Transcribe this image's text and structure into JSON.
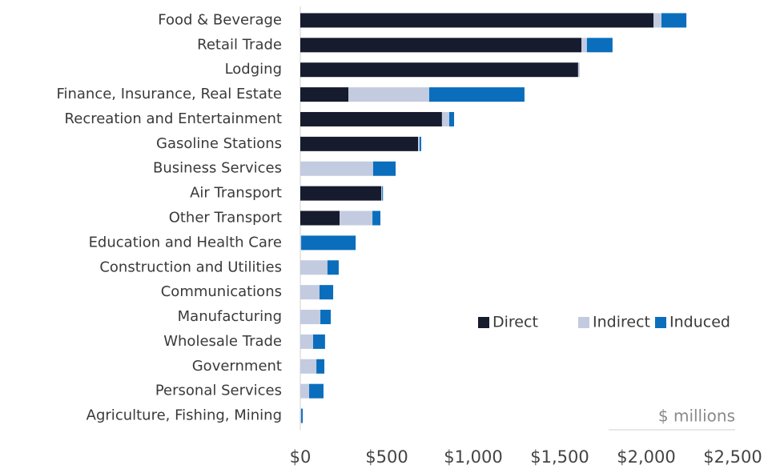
{
  "chart_data": {
    "type": "stacked_barh",
    "categories": [
      "Food & Beverage",
      "Retail Trade",
      "Lodging",
      "Finance, Insurance, Real Estate",
      "Recreation and Entertainment",
      "Gasoline Stations",
      "Business Services",
      "Air Transport",
      "Other Transport",
      "Education and Health Care",
      "Construction and Utilities",
      "Communications",
      "Manufacturing",
      "Wholesale Trade",
      "Government",
      "Personal Services",
      "Agriculture, Fishing, Mining"
    ],
    "series": [
      {
        "name": "Direct",
        "color": "#161b2e",
        "values": [
          2042,
          1625,
          1606,
          278,
          819,
          681,
          0,
          468,
          227,
          0,
          0,
          0,
          0,
          0,
          0,
          0,
          0
        ]
      },
      {
        "name": "Indirect",
        "color": "#c3cbe0",
        "values": [
          46,
          32,
          9,
          467,
          42,
          9,
          421,
          5,
          190,
          5,
          157,
          111,
          116,
          74,
          93,
          51,
          5
        ]
      },
      {
        "name": "Induced",
        "color": "#0a6ebd",
        "values": [
          144,
          148,
          0,
          551,
          28,
          9,
          130,
          5,
          46,
          315,
          65,
          79,
          60,
          69,
          46,
          83,
          9
        ]
      }
    ],
    "xlim": [
      0,
      2500
    ],
    "xticks": [
      {
        "value": 0,
        "label": "$0"
      },
      {
        "value": 500,
        "label": "$500"
      },
      {
        "value": 1000,
        "label": "$1,000"
      },
      {
        "value": 1500,
        "label": "$1,500"
      },
      {
        "value": 2000,
        "label": "$2,000"
      },
      {
        "value": 2500,
        "label": "$2,500"
      }
    ],
    "annotation": "$ millions",
    "legend": "lower right",
    "grid": false
  }
}
